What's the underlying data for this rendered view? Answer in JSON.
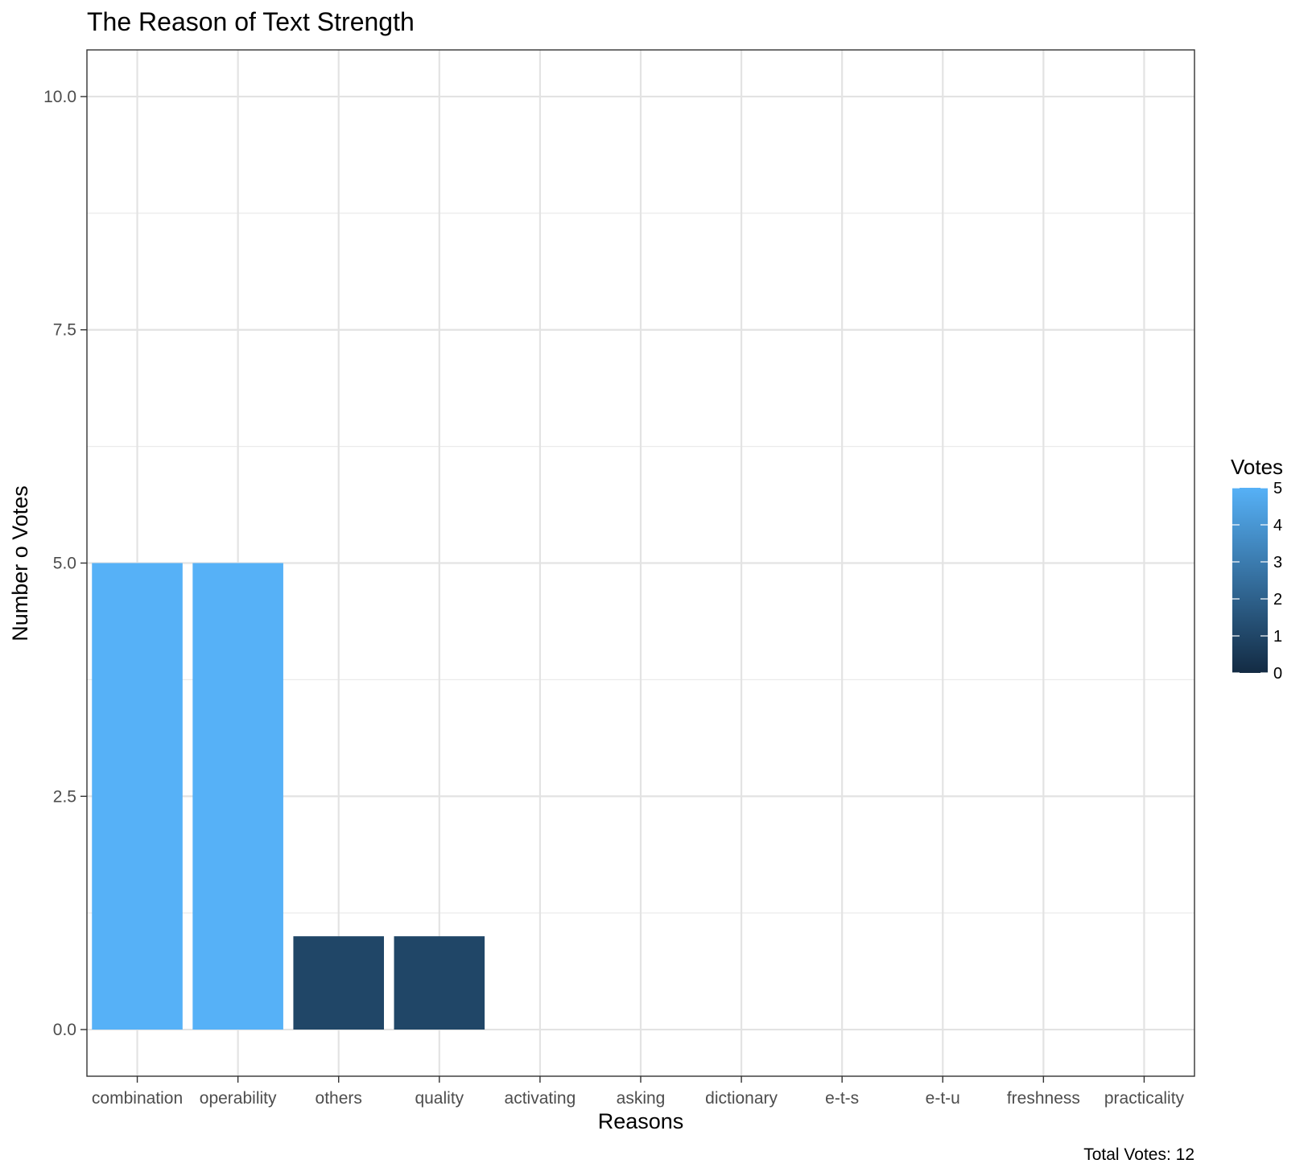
{
  "chart_data": {
    "type": "bar",
    "title": "The Reason of Text Strength",
    "xlabel": "Reasons",
    "ylabel": "Number o Votes",
    "categories": [
      "combination",
      "operability",
      "others",
      "quality",
      "activating",
      "asking",
      "dictionary",
      "e-t-s",
      "e-t-u",
      "freshness",
      "practicality"
    ],
    "values": [
      5,
      5,
      1,
      1,
      0,
      0,
      0,
      0,
      0,
      0,
      0
    ],
    "ylim": [
      -0.5,
      10.5
    ],
    "yticks": [
      0,
      2.5,
      5,
      7.5,
      10
    ],
    "ytick_labels": [
      "0.0",
      "2.5",
      "5.0",
      "7.5",
      "10.0"
    ],
    "grid": true,
    "legend": {
      "title": "Votes",
      "placement": "right",
      "type": "colorbar",
      "min": 0,
      "max": 5,
      "ticks": [
        "0",
        "1",
        "2",
        "3",
        "4",
        "5"
      ],
      "color_low": "#132b43",
      "color_high": "#56b1f7"
    },
    "caption": "Total Votes: 12"
  }
}
